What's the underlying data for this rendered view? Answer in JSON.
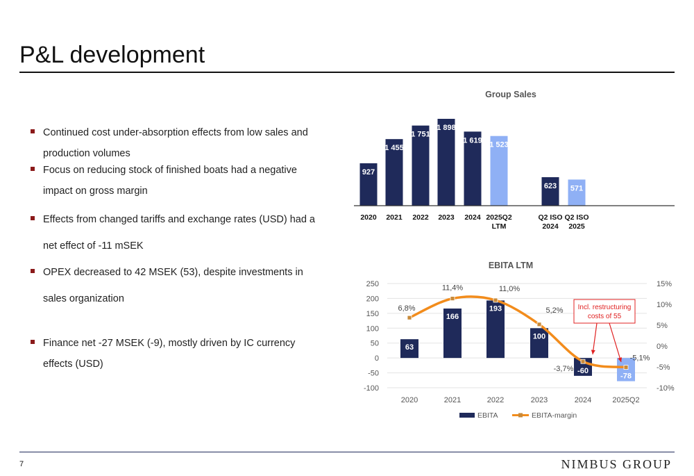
{
  "page": {
    "title": "P&L development",
    "page_number": "7",
    "logo_text": "NIMBUS GROUP"
  },
  "bullets": [
    "Continued cost under-absorption effects from low sales and production volumes",
    "Focus on reducing stock of finished boats had a negative impact on gross margin",
    "Effects from changed tariffs and exchange rates (USD) had a net effect of -11 mSEK",
    "OPEX decreased to 42 MSEK (53), despite investments in sales organization",
    "Finance net -27 MSEK (-9), mostly driven by IC currency effects (USD)"
  ],
  "colors": {
    "navy": "#1f2a5a",
    "light_blue": "#8fb0f5",
    "orange": "#f28c1c",
    "bullet_red": "#8b1a1a",
    "callout_red": "#e02020"
  },
  "chart_data": [
    {
      "type": "bar",
      "title": "Group Sales",
      "categories": [
        "2020",
        "2021",
        "2022",
        "2023",
        "2024",
        "2025Q2 LTM",
        "Q2 ISO 2024",
        "Q2 ISO 2025"
      ],
      "category_lines": [
        [
          "2020"
        ],
        [
          "2021"
        ],
        [
          "2022"
        ],
        [
          "2023"
        ],
        [
          "2024"
        ],
        [
          "2025Q2",
          "LTM"
        ],
        [
          "Q2 ISO",
          "2024"
        ],
        [
          "Q2 ISO",
          "2025"
        ]
      ],
      "values": [
        927,
        1455,
        1751,
        1898,
        1619,
        1523,
        623,
        571
      ],
      "value_labels": [
        "927",
        "1 455",
        "1 751",
        "1 898",
        "1 619",
        "1 523",
        "623",
        "571"
      ],
      "highlight": [
        false,
        false,
        false,
        false,
        false,
        true,
        false,
        true
      ],
      "ylim": [
        0,
        2000
      ],
      "grid": false
    },
    {
      "type": "bar+line",
      "title": "EBITA LTM",
      "categories": [
        "2020",
        "2021",
        "2022",
        "2023",
        "2024",
        "2025Q2"
      ],
      "series": [
        {
          "name": "EBITA",
          "type": "bar",
          "values": [
            63,
            166,
            193,
            100,
            -60,
            -78
          ],
          "labels": [
            "63",
            "166",
            "193",
            "100",
            "-60",
            "-78"
          ],
          "highlight": [
            false,
            false,
            false,
            false,
            false,
            true
          ]
        },
        {
          "name": "EBITA-margin",
          "type": "line",
          "axis": "right",
          "values": [
            6.8,
            11.4,
            11.0,
            5.2,
            -3.7,
            -5.1
          ],
          "labels": [
            "6,8%",
            "11,4%",
            "11,0%",
            "5,2%",
            "-3,7%",
            "-5,1%"
          ]
        }
      ],
      "left_axis": {
        "ylim": [
          -100,
          250
        ],
        "ticks": [
          "250",
          "200",
          "150",
          "100",
          "50",
          "0",
          "-50",
          "-100"
        ]
      },
      "right_axis": {
        "ylim": [
          -10,
          15
        ],
        "ticks": [
          "15%",
          "10%",
          "5%",
          "0%",
          "-5%",
          "-10%"
        ]
      },
      "annotation": "Incl. restructuring costs of 55",
      "legend": "bottom",
      "grid": true
    }
  ]
}
